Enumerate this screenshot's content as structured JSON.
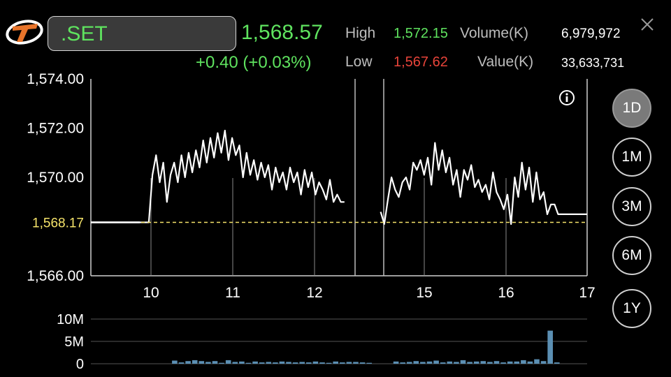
{
  "header": {
    "symbol": ".SET",
    "last": "1,568.57",
    "change": "+0.40 (+0.03%)",
    "high_label": "High",
    "high_value": "1,572.15",
    "low_label": "Low",
    "low_value": "1,567.62",
    "volume_label": "Volume(K)",
    "volume_value": "6,979,972",
    "value_label": "Value(K)",
    "value_value": "33,633,731"
  },
  "periods": [
    {
      "label": "1D",
      "active": true
    },
    {
      "label": "1M",
      "active": false
    },
    {
      "label": "3M",
      "active": false
    },
    {
      "label": "6M",
      "active": false
    },
    {
      "label": "1Y",
      "active": false
    }
  ],
  "colors": {
    "up": "#5fe35f",
    "down": "#e8443a",
    "reference": "#f5e36a",
    "volume": "#5b8fb3"
  },
  "info_icon": "info-icon",
  "chart_data": {
    "type": "line",
    "x_ticks": [
      "10",
      "11",
      "12",
      "15",
      "16",
      "17"
    ],
    "y_ticks": [
      "1,574.00",
      "1,572.00",
      "1,570.00",
      "1,566.00"
    ],
    "ylim": [
      1566,
      1574
    ],
    "reference_label": "1,568.17",
    "reference_value": 1568.17,
    "series": [
      {
        "values": [
          1568.17,
          1568.17,
          1568.17,
          1568.17,
          1568.17,
          1568.17,
          1568.17,
          1568.17,
          1568.17,
          1568.17,
          1568.17,
          1568.17,
          1568.17,
          1568.17,
          1568.17,
          1568.17,
          1568.17,
          1570.1,
          1570.9,
          1569.8,
          1570.6,
          1569.0,
          1570.1,
          1570.6,
          1569.8,
          1570.9,
          1570.0,
          1571.0,
          1570.2,
          1571.1,
          1570.4,
          1571.5,
          1570.6,
          1571.6,
          1570.8,
          1571.8,
          1571.0,
          1571.9,
          1570.7,
          1571.6,
          1570.9,
          1571.3,
          1570.0,
          1571.0,
          1570.1,
          1570.7,
          1569.9,
          1570.6,
          1570.0,
          1570.5,
          1569.5,
          1570.4,
          1569.8,
          1570.2,
          1569.5,
          1570.4,
          1569.8,
          1570.2,
          1569.3,
          1570.3,
          1569.6,
          1570.2,
          1569.3,
          1569.8,
          1569.5,
          1569.1,
          1569.9,
          1569.0,
          1569.3,
          1569.0,
          1569.0,
          null,
          null,
          null,
          null,
          null,
          null,
          null,
          null,
          null,
          1568.6,
          1568.1,
          1569.1,
          1570.0,
          1569.5,
          1569.2,
          1569.8,
          1570.0,
          1569.5,
          1570.6,
          1570.3,
          1570.7,
          1570.1,
          1570.8,
          1569.7,
          1571.4,
          1570.3,
          1571.1,
          1570.2,
          1570.8,
          1569.7,
          1570.3,
          1569.2,
          1570.3,
          1569.9,
          1570.5,
          1569.6,
          1569.9,
          1569.4,
          1569.7,
          1569.1,
          1570.2,
          1569.4,
          1569.1,
          1568.7,
          1569.3,
          1568.1,
          1570.0,
          1569.2,
          1570.6,
          1569.5,
          1570.4,
          1569.0,
          1570.2,
          1569.1,
          1569.4,
          1568.5,
          1568.9,
          1568.9,
          1568.5,
          1568.5,
          1568.5,
          1568.5,
          1568.5,
          1568.5,
          1568.5,
          1568.5,
          1568.5
        ]
      }
    ],
    "volume": {
      "y_ticks": [
        "10M",
        "5M",
        "0"
      ],
      "ylim": [
        0,
        10
      ],
      "values": [
        0,
        0,
        0,
        0,
        0,
        0,
        0,
        0,
        0,
        0,
        0,
        0,
        0.7,
        0.3,
        0.6,
        0.8,
        0.6,
        0.4,
        0.6,
        0.2,
        0.8,
        0.4,
        0.5,
        0.2,
        0.5,
        0.3,
        0.4,
        0.3,
        0.5,
        0.4,
        0.3,
        0.4,
        0.3,
        0.5,
        0.3,
        0.2,
        0.5,
        0.3,
        0.4,
        0.4,
        0.3,
        0.2,
        0,
        0,
        0,
        0.5,
        0.3,
        0.4,
        0.6,
        0.4,
        0.5,
        0.7,
        0.3,
        0.5,
        0.4,
        0.8,
        0.4,
        0.5,
        0.6,
        0.4,
        0.6,
        0.3,
        0.5,
        0.5,
        0.8,
        0.5,
        1.0,
        0.6,
        7.4,
        0.3,
        0,
        0,
        0,
        0
      ]
    }
  }
}
